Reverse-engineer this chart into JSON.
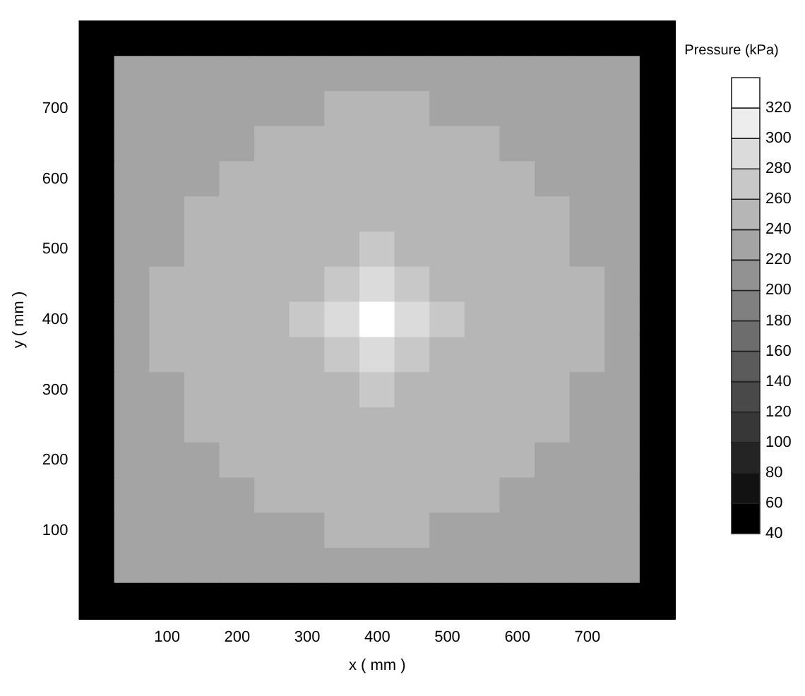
{
  "chart_data": {
    "type": "heatmap",
    "xlabel": "x ( mm )",
    "ylabel": "y ( mm )",
    "clabel": "Pressure (kPa)",
    "categories": [
      null,
      null,
      "100",
      null,
      "200",
      null,
      "300",
      null,
      "400",
      null,
      "500",
      null,
      "600",
      null,
      "700",
      null,
      null
    ],
    "y_categories": [
      null,
      null,
      "700",
      null,
      "600",
      null,
      "500",
      null,
      "400",
      null,
      "300",
      null,
      "200",
      null,
      "100",
      null,
      null
    ],
    "clim": [
      40,
      340
    ],
    "cticks": [
      40,
      60,
      80,
      100,
      120,
      140,
      160,
      180,
      200,
      220,
      240,
      260,
      280,
      300,
      320
    ],
    "cells": [
      [
        40,
        40,
        40,
        40,
        40,
        40,
        40,
        40,
        40,
        40,
        40,
        40,
        40,
        40,
        40,
        40,
        40
      ],
      [
        40,
        230,
        230,
        230,
        230,
        230,
        230,
        230,
        230,
        230,
        230,
        230,
        230,
        230,
        230,
        230,
        40
      ],
      [
        40,
        230,
        230,
        230,
        230,
        230,
        230,
        250,
        250,
        250,
        230,
        230,
        230,
        230,
        230,
        230,
        40
      ],
      [
        40,
        230,
        230,
        230,
        230,
        250,
        250,
        250,
        250,
        250,
        250,
        250,
        230,
        230,
        230,
        230,
        40
      ],
      [
        40,
        230,
        230,
        230,
        250,
        250,
        250,
        250,
        250,
        250,
        250,
        250,
        250,
        230,
        230,
        230,
        40
      ],
      [
        40,
        230,
        230,
        250,
        250,
        250,
        250,
        250,
        250,
        250,
        250,
        250,
        250,
        250,
        230,
        230,
        40
      ],
      [
        40,
        230,
        230,
        250,
        250,
        250,
        250,
        250,
        270,
        250,
        250,
        250,
        250,
        250,
        230,
        230,
        40
      ],
      [
        40,
        230,
        250,
        250,
        250,
        250,
        250,
        270,
        290,
        270,
        250,
        250,
        250,
        250,
        250,
        230,
        40
      ],
      [
        40,
        230,
        250,
        250,
        250,
        250,
        270,
        290,
        330,
        290,
        270,
        250,
        250,
        250,
        250,
        230,
        40
      ],
      [
        40,
        230,
        250,
        250,
        250,
        250,
        250,
        270,
        290,
        270,
        250,
        250,
        250,
        250,
        250,
        230,
        40
      ],
      [
        40,
        230,
        230,
        250,
        250,
        250,
        250,
        250,
        270,
        250,
        250,
        250,
        250,
        250,
        230,
        230,
        40
      ],
      [
        40,
        230,
        230,
        250,
        250,
        250,
        250,
        250,
        250,
        250,
        250,
        250,
        250,
        250,
        230,
        230,
        40
      ],
      [
        40,
        230,
        230,
        230,
        250,
        250,
        250,
        250,
        250,
        250,
        250,
        250,
        250,
        230,
        230,
        230,
        40
      ],
      [
        40,
        230,
        230,
        230,
        230,
        250,
        250,
        250,
        250,
        250,
        250,
        250,
        230,
        230,
        230,
        230,
        40
      ],
      [
        40,
        230,
        230,
        230,
        230,
        230,
        230,
        250,
        250,
        250,
        230,
        230,
        230,
        230,
        230,
        230,
        40
      ],
      [
        40,
        230,
        230,
        230,
        230,
        230,
        230,
        230,
        230,
        230,
        230,
        230,
        230,
        230,
        230,
        230,
        40
      ],
      [
        40,
        40,
        40,
        40,
        40,
        40,
        40,
        40,
        40,
        40,
        40,
        40,
        40,
        40,
        40,
        40,
        40
      ]
    ]
  }
}
